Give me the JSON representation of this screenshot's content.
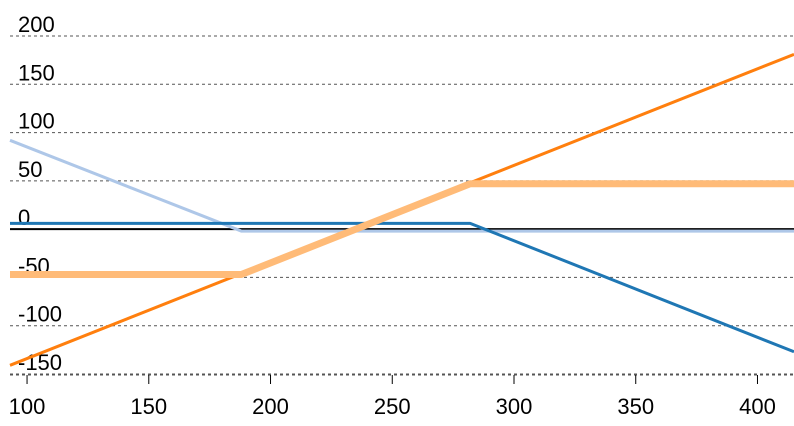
{
  "chart_data": {
    "type": "line",
    "title": "",
    "xlabel": "",
    "ylabel": "",
    "xlim": [
      93,
      415
    ],
    "ylim": [
      -150,
      200
    ],
    "x_ticks": [
      100,
      150,
      200,
      250,
      300,
      350,
      400
    ],
    "y_ticks": [
      200,
      150,
      100,
      50,
      0,
      -50,
      -100,
      -150
    ],
    "x_tick_labels": [
      "100",
      "150",
      "200",
      "250",
      "300",
      "350",
      "400"
    ],
    "y_tick_labels": [
      "200",
      "150",
      "100",
      "50",
      "0",
      "-50",
      "-100",
      "-150"
    ],
    "grid": "horizontal dashed",
    "series": [
      {
        "color": "#aec7e8",
        "width": 3,
        "points": [
          [
            93,
            92
          ],
          [
            188,
            -2
          ],
          [
            415,
            -2
          ]
        ]
      },
      {
        "color": "#1f77b4",
        "width": 3,
        "points": [
          [
            93,
            6
          ],
          [
            282,
            6
          ],
          [
            415,
            -127
          ]
        ]
      },
      {
        "color": "#ff7f0e",
        "width": 3,
        "points": [
          [
            93,
            -141
          ],
          [
            415,
            181
          ]
        ]
      },
      {
        "color": "#ffbb78",
        "width": 7,
        "points": [
          [
            93,
            -47
          ],
          [
            188,
            -47
          ],
          [
            282,
            47
          ],
          [
            415,
            47
          ]
        ]
      }
    ]
  }
}
